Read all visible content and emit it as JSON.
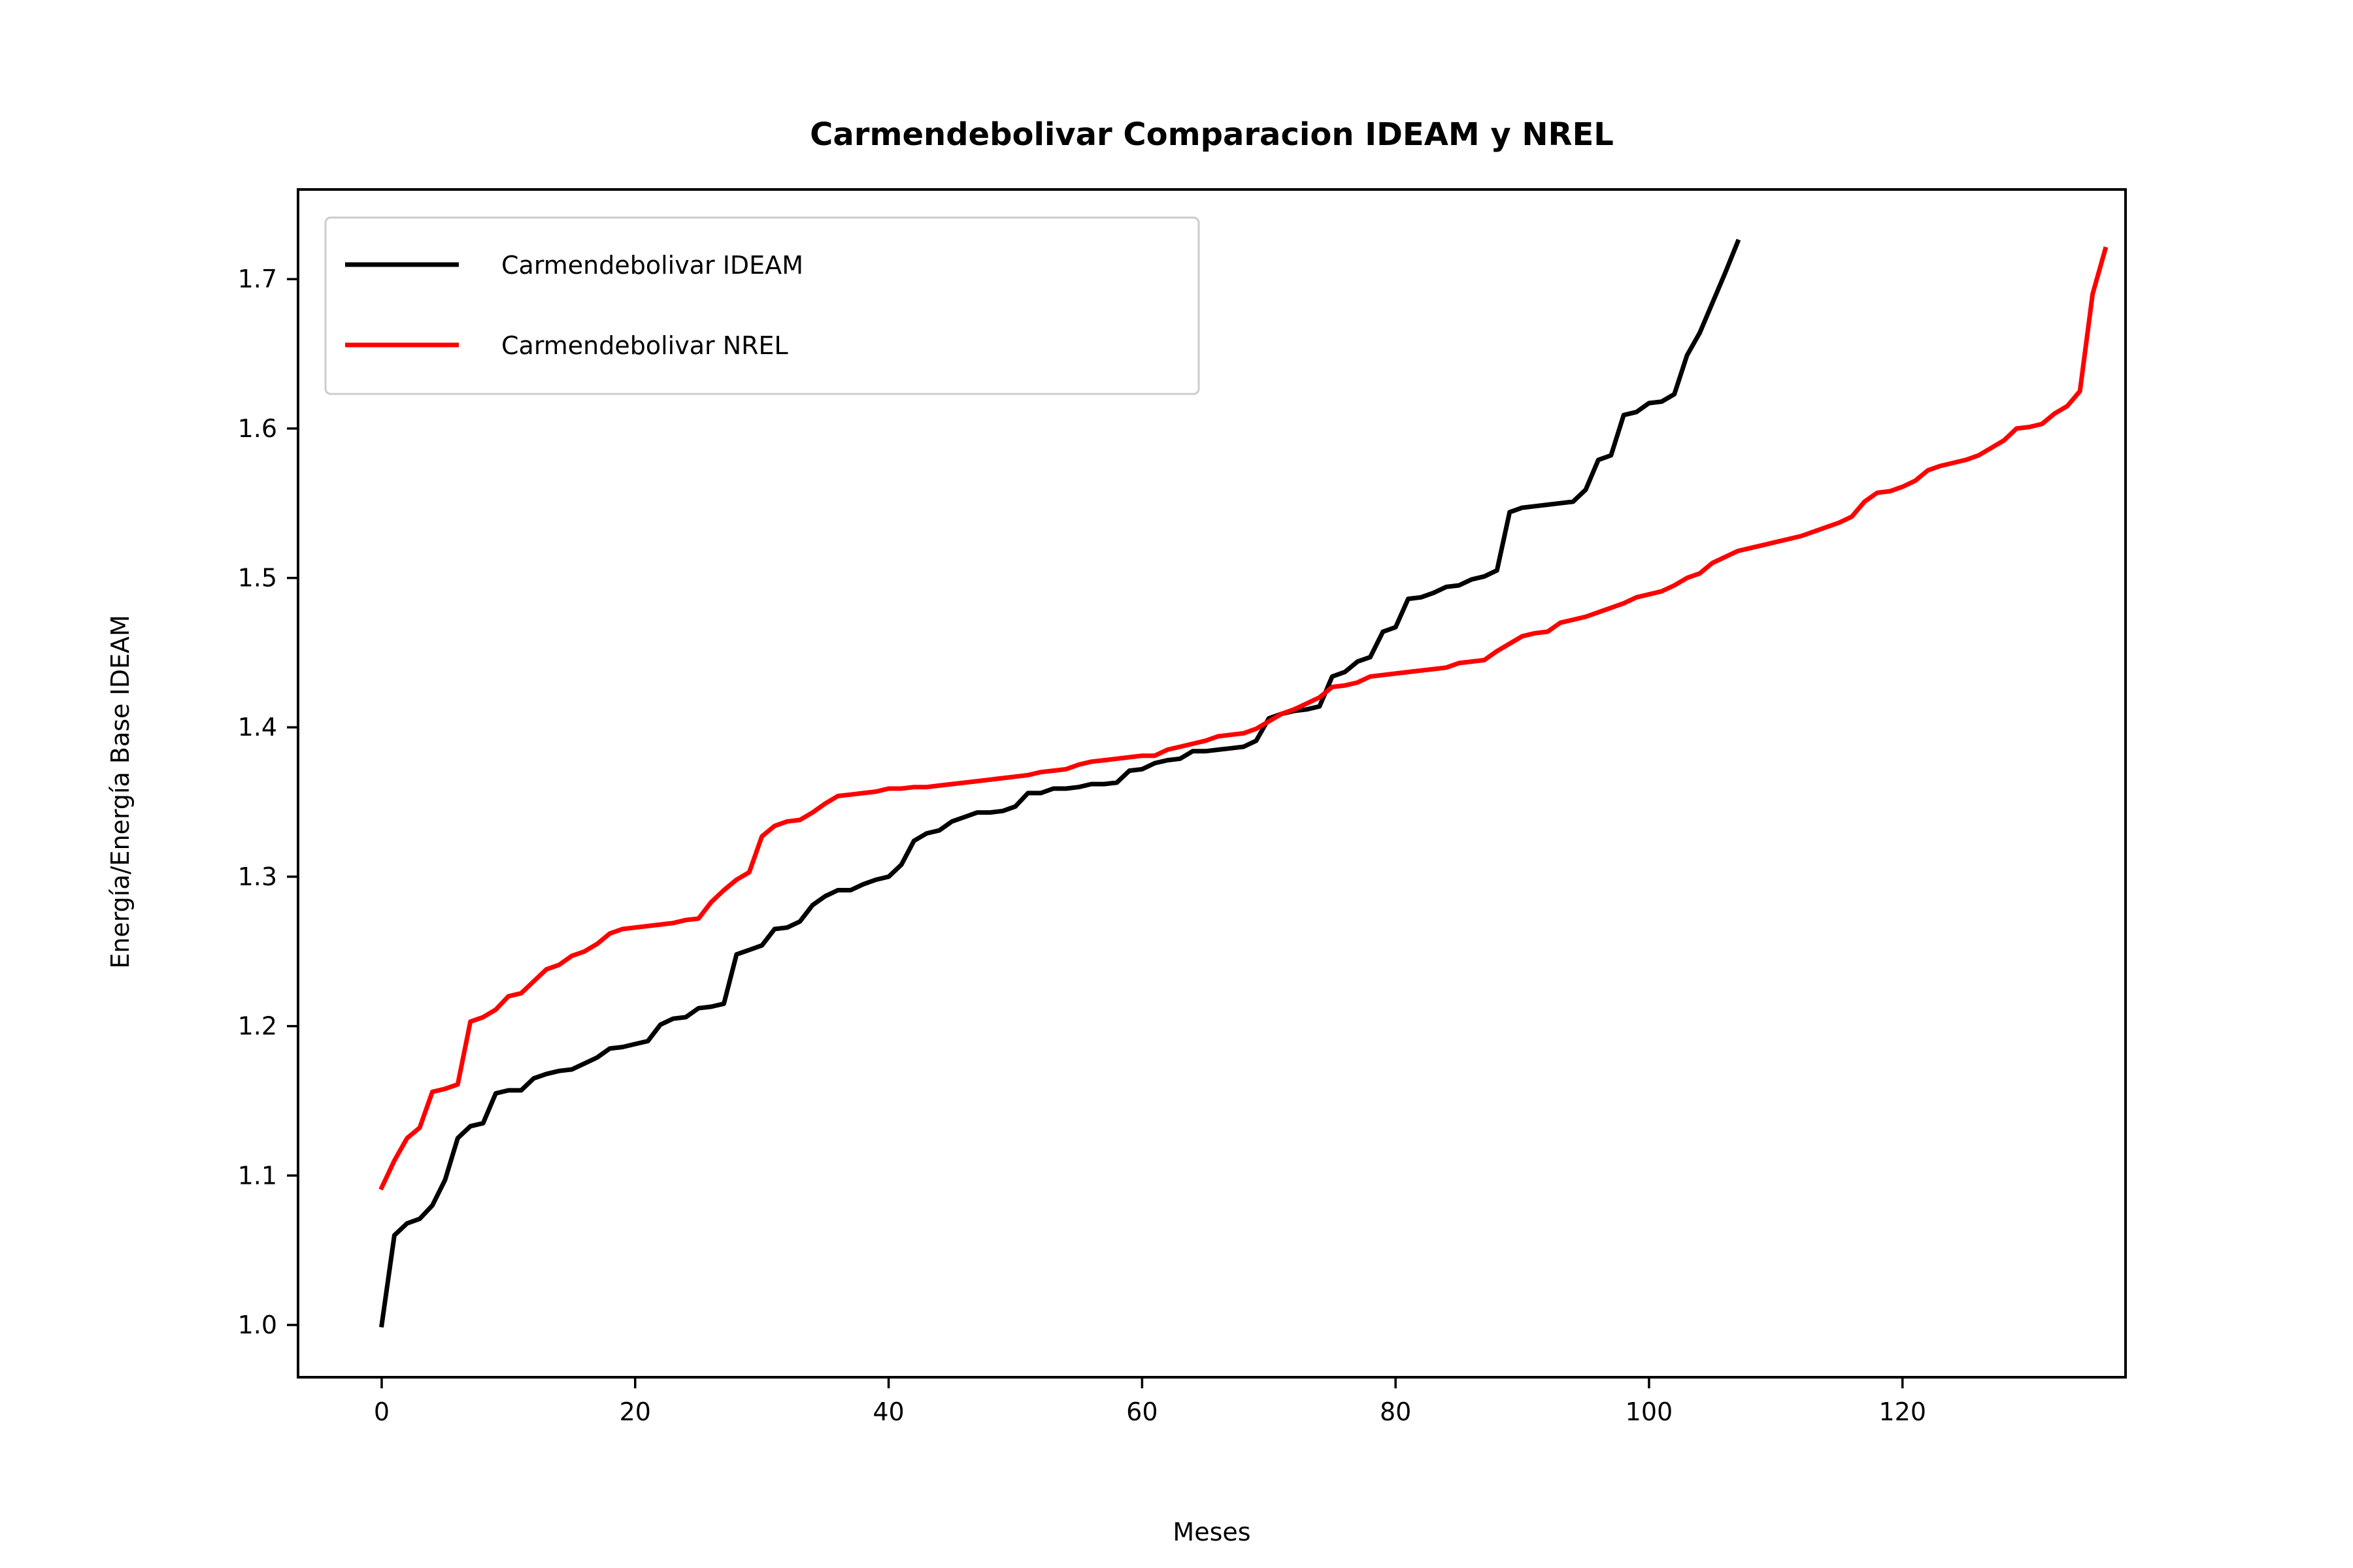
{
  "chart_data": {
    "type": "line",
    "title": "Carmendebolivar Comparacion IDEAM y NREL",
    "xlabel": "Meses",
    "ylabel": "Energía/Energía Base IDEAM",
    "xlim": [
      -6.6,
      137.6
    ],
    "ylim": [
      0.965,
      1.76
    ],
    "xticks": [
      0,
      20,
      40,
      60,
      80,
      100,
      120
    ],
    "yticks": [
      1.0,
      1.1,
      1.2,
      1.3,
      1.4,
      1.5,
      1.6,
      1.7
    ],
    "xtick_labels": [
      "0",
      "20",
      "40",
      "60",
      "80",
      "100",
      "120"
    ],
    "ytick_labels": [
      "1.0",
      "1.1",
      "1.2",
      "1.3",
      "1.4",
      "1.5",
      "1.6",
      "1.7"
    ],
    "grid": false,
    "legend_position": "upper-left",
    "series": [
      {
        "name": "Carmendebolivar IDEAM",
        "color": "#000000",
        "values": [
          1.0,
          1.06,
          1.068,
          1.071,
          1.08,
          1.097,
          1.125,
          1.133,
          1.135,
          1.155,
          1.157,
          1.157,
          1.165,
          1.168,
          1.17,
          1.171,
          1.175,
          1.179,
          1.185,
          1.186,
          1.188,
          1.19,
          1.201,
          1.205,
          1.206,
          1.212,
          1.213,
          1.215,
          1.248,
          1.251,
          1.254,
          1.265,
          1.266,
          1.27,
          1.281,
          1.287,
          1.291,
          1.291,
          1.295,
          1.298,
          1.3,
          1.308,
          1.324,
          1.329,
          1.331,
          1.337,
          1.34,
          1.343,
          1.343,
          1.344,
          1.347,
          1.356,
          1.356,
          1.359,
          1.359,
          1.36,
          1.362,
          1.362,
          1.363,
          1.371,
          1.372,
          1.376,
          1.378,
          1.379,
          1.384,
          1.384,
          1.385,
          1.386,
          1.387,
          1.391,
          1.406,
          1.409,
          1.411,
          1.412,
          1.414,
          1.434,
          1.437,
          1.444,
          1.447,
          1.464,
          1.467,
          1.486,
          1.487,
          1.49,
          1.494,
          1.495,
          1.499,
          1.501,
          1.505,
          1.544,
          1.547,
          1.548,
          1.549,
          1.55,
          1.551,
          1.559,
          1.579,
          1.582,
          1.609,
          1.611,
          1.617,
          1.618,
          1.623,
          1.649,
          1.664,
          1.684,
          1.704,
          1.725
        ]
      },
      {
        "name": "Carmendebolivar NREL",
        "color": "#ff0000",
        "values": [
          1.092,
          1.11,
          1.125,
          1.132,
          1.156,
          1.158,
          1.161,
          1.203,
          1.206,
          1.211,
          1.22,
          1.222,
          1.23,
          1.238,
          1.241,
          1.247,
          1.25,
          1.255,
          1.262,
          1.265,
          1.266,
          1.267,
          1.268,
          1.269,
          1.271,
          1.272,
          1.283,
          1.291,
          1.298,
          1.303,
          1.327,
          1.334,
          1.337,
          1.338,
          1.343,
          1.349,
          1.354,
          1.355,
          1.356,
          1.357,
          1.359,
          1.359,
          1.36,
          1.36,
          1.361,
          1.362,
          1.363,
          1.364,
          1.365,
          1.366,
          1.367,
          1.368,
          1.37,
          1.371,
          1.372,
          1.375,
          1.377,
          1.378,
          1.379,
          1.38,
          1.381,
          1.381,
          1.385,
          1.387,
          1.389,
          1.391,
          1.394,
          1.395,
          1.396,
          1.399,
          1.404,
          1.409,
          1.412,
          1.416,
          1.42,
          1.427,
          1.428,
          1.43,
          1.434,
          1.435,
          1.436,
          1.437,
          1.438,
          1.439,
          1.44,
          1.443,
          1.444,
          1.445,
          1.451,
          1.456,
          1.461,
          1.463,
          1.464,
          1.47,
          1.472,
          1.474,
          1.477,
          1.48,
          1.483,
          1.487,
          1.489,
          1.491,
          1.495,
          1.5,
          1.503,
          1.51,
          1.514,
          1.518,
          1.52,
          1.522,
          1.524,
          1.526,
          1.528,
          1.531,
          1.534,
          1.537,
          1.541,
          1.551,
          1.557,
          1.558,
          1.561,
          1.565,
          1.572,
          1.575,
          1.577,
          1.579,
          1.582,
          1.587,
          1.592,
          1.6,
          1.601,
          1.603,
          1.61,
          1.615,
          1.625,
          1.69,
          1.72
        ]
      }
    ]
  }
}
